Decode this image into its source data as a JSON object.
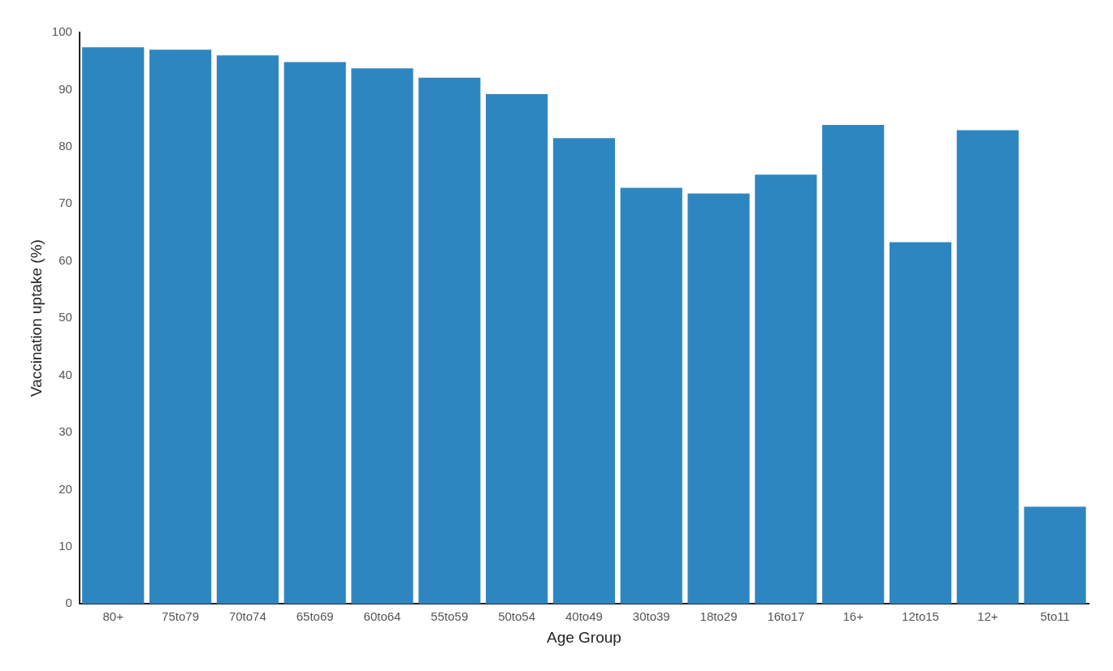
{
  "chart_data": {
    "type": "bar",
    "xlabel": "Age Group",
    "ylabel": "Vaccination uptake (%)",
    "categories": [
      "80+",
      "75to79",
      "70to74",
      "65to69",
      "60to64",
      "55to59",
      "50to54",
      "40to49",
      "30to39",
      "18to29",
      "16to17",
      "16+",
      "12to15",
      "12+",
      "5to11"
    ],
    "values": [
      97.4,
      97.0,
      96.0,
      94.8,
      93.7,
      92.1,
      89.2,
      81.5,
      72.8,
      71.8,
      75.1,
      83.8,
      63.3,
      82.9,
      17.0
    ],
    "color": "#2e86c1",
    "ylim": [
      0,
      100
    ],
    "yticks": [
      0,
      10,
      20,
      30,
      40,
      50,
      60,
      70,
      80,
      90,
      100
    ],
    "grid": false,
    "legend": false
  }
}
